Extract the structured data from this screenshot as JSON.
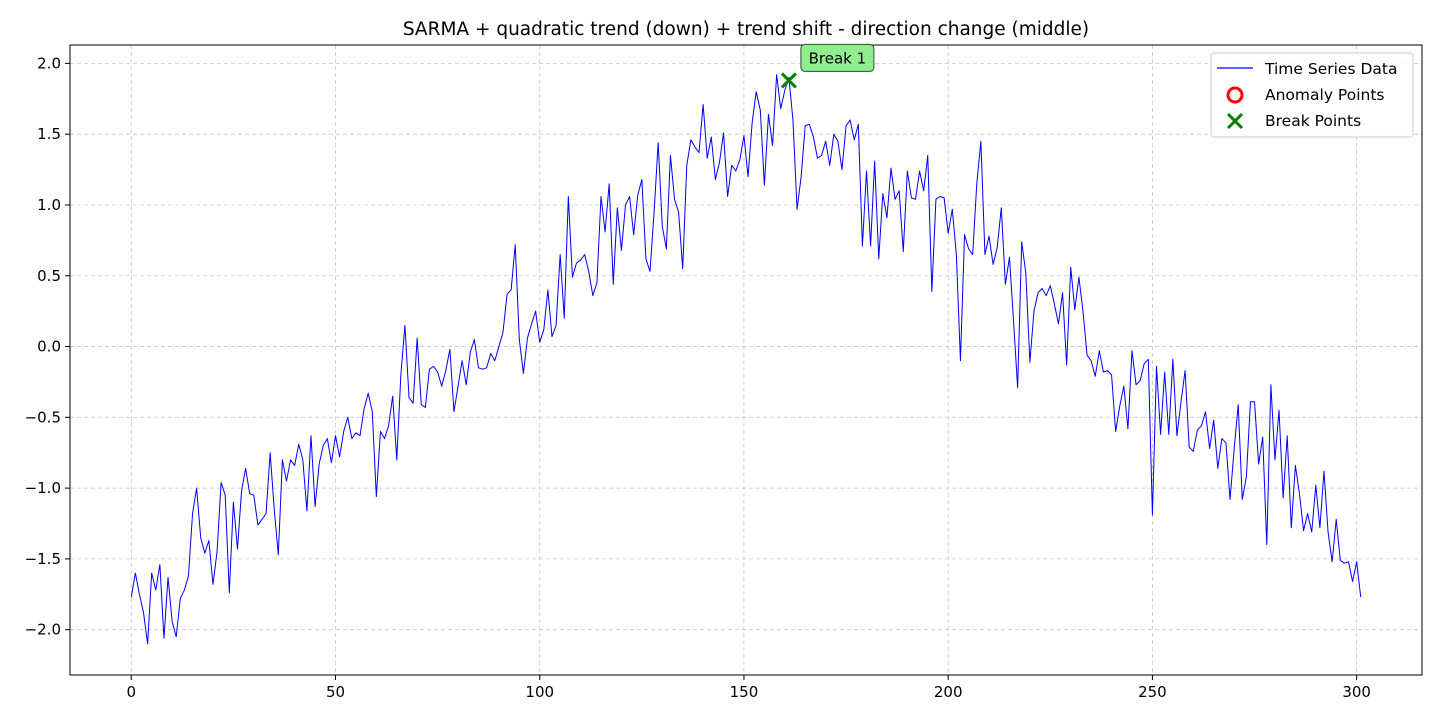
{
  "chart_data": {
    "type": "line",
    "title": "SARMA + quadratic trend (down) + trend shift - direction change (middle)",
    "xlabel": "",
    "ylabel": "",
    "xlim": [
      -15,
      316
    ],
    "ylim": [
      -2.32,
      2.13
    ],
    "xticks": [
      0,
      50,
      100,
      150,
      200,
      250,
      300
    ],
    "yticks": [
      -2.0,
      -1.5,
      -1.0,
      -0.5,
      0.0,
      0.5,
      1.0,
      1.5,
      2.0
    ],
    "grid": true,
    "legend_position": "top-right",
    "colors": {
      "series": "#0000ff",
      "anomaly": "#ff0000",
      "break": "#008000",
      "annotation_bg": "#90ee90"
    },
    "series": [
      {
        "name": "Time Series Data",
        "values": [
          -1.77,
          -1.6,
          -1.75,
          -1.88,
          -2.1,
          -1.6,
          -1.72,
          -1.54,
          -2.06,
          -1.63,
          -1.94,
          -2.05,
          -1.78,
          -1.72,
          -1.62,
          -1.18,
          -1.0,
          -1.35,
          -1.46,
          -1.37,
          -1.68,
          -1.45,
          -0.96,
          -1.05,
          -1.74,
          -1.1,
          -1.43,
          -1.02,
          -0.86,
          -1.04,
          -1.05,
          -1.26,
          -1.22,
          -1.18,
          -0.75,
          -1.15,
          -1.47,
          -0.8,
          -0.95,
          -0.8,
          -0.84,
          -0.69,
          -0.8,
          -1.16,
          -0.63,
          -1.13,
          -0.83,
          -0.7,
          -0.65,
          -0.82,
          -0.63,
          -0.78,
          -0.6,
          -0.5,
          -0.65,
          -0.61,
          -0.63,
          -0.44,
          -0.33,
          -0.46,
          -1.06,
          -0.6,
          -0.65,
          -0.56,
          -0.35,
          -0.8,
          -0.2,
          0.15,
          -0.36,
          -0.4,
          0.06,
          -0.41,
          -0.43,
          -0.16,
          -0.14,
          -0.18,
          -0.28,
          -0.17,
          -0.02,
          -0.46,
          -0.28,
          -0.1,
          -0.27,
          -0.04,
          0.05,
          -0.15,
          -0.16,
          -0.15,
          -0.05,
          -0.1,
          0.0,
          0.1,
          0.37,
          0.4,
          0.72,
          0.05,
          -0.19,
          0.06,
          0.16,
          0.25,
          0.03,
          0.12,
          0.4,
          0.07,
          0.15,
          0.65,
          0.2,
          1.06,
          0.49,
          0.59,
          0.61,
          0.65,
          0.53,
          0.36,
          0.45,
          1.06,
          0.81,
          1.15,
          0.44,
          0.98,
          0.68,
          1.0,
          1.06,
          0.79,
          1.07,
          1.18,
          0.62,
          0.53,
          0.95,
          1.44,
          0.85,
          0.69,
          1.35,
          1.04,
          0.95,
          0.55,
          1.28,
          1.46,
          1.41,
          1.37,
          1.71,
          1.33,
          1.48,
          1.18,
          1.3,
          1.51,
          1.06,
          1.28,
          1.24,
          1.32,
          1.49,
          1.2,
          1.58,
          1.8,
          1.67,
          1.14,
          1.64,
          1.42,
          1.92,
          1.68,
          1.81,
          1.9,
          1.6,
          0.97,
          1.2,
          1.56,
          1.57,
          1.48,
          1.33,
          1.35,
          1.45,
          1.28,
          1.5,
          1.45,
          1.25,
          1.56,
          1.6,
          1.46,
          1.57,
          0.71,
          1.24,
          0.71,
          1.31,
          0.62,
          1.08,
          0.91,
          1.26,
          1.04,
          1.1,
          0.67,
          1.24,
          1.05,
          1.04,
          1.24,
          1.1,
          1.35,
          0.39,
          1.04,
          1.06,
          1.05,
          0.8,
          0.97,
          0.65,
          -0.1,
          0.79,
          0.69,
          0.65,
          1.15,
          1.45,
          0.65,
          0.78,
          0.58,
          0.7,
          0.98,
          0.44,
          0.63,
          0.18,
          -0.29,
          0.74,
          0.52,
          -0.11,
          0.25,
          0.38,
          0.41,
          0.36,
          0.43,
          0.3,
          0.16,
          0.38,
          -0.13,
          0.56,
          0.26,
          0.49,
          0.25,
          -0.06,
          -0.1,
          -0.21,
          -0.03,
          -0.18,
          -0.17,
          -0.2,
          -0.6,
          -0.42,
          -0.28,
          -0.58,
          -0.03,
          -0.27,
          -0.24,
          -0.12,
          -0.09,
          -1.19,
          -0.14,
          -0.62,
          -0.18,
          -0.62,
          -0.09,
          -0.63,
          -0.39,
          -0.17,
          -0.71,
          -0.74,
          -0.59,
          -0.56,
          -0.46,
          -0.72,
          -0.52,
          -0.86,
          -0.65,
          -0.68,
          -1.08,
          -0.73,
          -0.41,
          -1.08,
          -0.92,
          -0.39,
          -0.39,
          -0.83,
          -0.64,
          -1.4,
          -0.27,
          -0.8,
          -0.45,
          -1.07,
          -0.63,
          -1.28,
          -0.84,
          -1.04,
          -1.3,
          -1.18,
          -1.31,
          -0.98,
          -1.28,
          -0.88,
          -1.31,
          -1.52,
          -1.22,
          -1.51,
          -1.53,
          -1.52,
          -1.66,
          -1.52,
          -1.77
        ]
      }
    ],
    "legend": [
      {
        "label": "Time Series Data",
        "marker": "line"
      },
      {
        "label": "Anomaly Points",
        "marker": "circle"
      },
      {
        "label": "Break Points",
        "marker": "x"
      }
    ],
    "break_points": [
      {
        "x": 161,
        "y": 1.88,
        "label": "Break 1"
      }
    ],
    "anomaly_points": []
  }
}
